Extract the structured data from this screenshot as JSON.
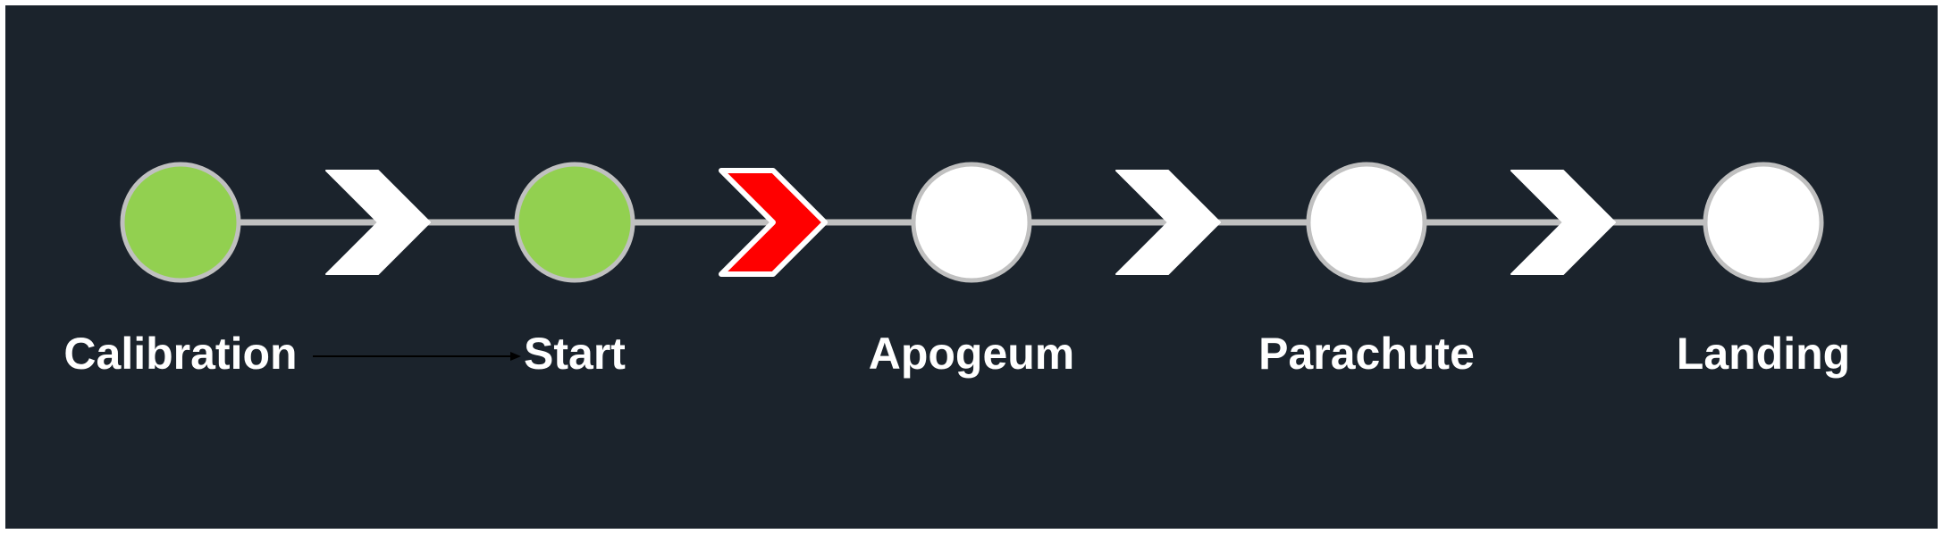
{
  "diagram": {
    "background_color": "#1b232c",
    "track_color": "#c0c0c0",
    "stages": [
      {
        "label": "Calibration",
        "status": "done",
        "fill": "#92d050"
      },
      {
        "label": "Start",
        "status": "done",
        "fill": "#92d050"
      },
      {
        "label": "Apogeum",
        "status": "pending",
        "fill": "#ffffff"
      },
      {
        "label": "Parachute",
        "status": "pending",
        "fill": "#ffffff"
      },
      {
        "label": "Landing",
        "status": "pending",
        "fill": "#ffffff"
      }
    ],
    "transitions": [
      {
        "from": "Calibration",
        "to": "Start",
        "state": "passed",
        "fill": "#ffffff"
      },
      {
        "from": "Start",
        "to": "Apogeum",
        "state": "active",
        "fill": "#ff0000"
      },
      {
        "from": "Apogeum",
        "to": "Parachute",
        "state": "next",
        "fill": "#ffffff"
      },
      {
        "from": "Parachute",
        "to": "Landing",
        "state": "next",
        "fill": "#ffffff"
      }
    ],
    "connector": {
      "from": "Calibration",
      "to": "Start",
      "icon": "thin-arrow-icon"
    }
  }
}
